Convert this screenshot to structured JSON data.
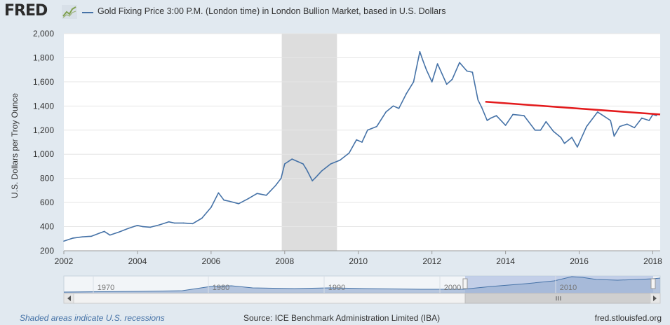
{
  "header": {
    "logo": "FRED",
    "logo_mark": "fred-chart-icon",
    "series_title": "Gold Fixing Price 3:00 P.M. (London time) in London Bullion Market, based in U.S. Dollars"
  },
  "footer": {
    "recession_note": "Shaded areas indicate U.S. recessions",
    "source": "Source: ICE Benchmark Administration Limited (IBA)",
    "site": "fred.stlouisfed.org"
  },
  "navigator": {
    "tick_labels": [
      "1970",
      "1980",
      "1990",
      "2000",
      "2010"
    ],
    "scroll_left_icon": "left-arrow-icon",
    "scroll_right_icon": "right-arrow-icon",
    "grip_icon": "grip-icon"
  },
  "colors": {
    "series": "#4572a7",
    "trendline": "#e31a1c",
    "recession": "#dddddd",
    "background": "#e1e9f0",
    "plot_bg": "#ffffff"
  },
  "chart_data": {
    "type": "line",
    "title": "Gold Fixing Price 3:00 P.M. (London time) in London Bullion Market, based in U.S. Dollars",
    "xlabel": "",
    "ylabel": "U.S. Dollars per Troy Ounce",
    "xlim": [
      2002.0,
      2018.2
    ],
    "ylim": [
      200,
      2000
    ],
    "yticks": [
      200,
      400,
      600,
      800,
      1000,
      1200,
      1400,
      1600,
      1800,
      2000
    ],
    "ytick_labels": [
      "200",
      "400",
      "600",
      "800",
      "1,000",
      "1,200",
      "1,400",
      "1,600",
      "1,800",
      "2,000"
    ],
    "xticks": [
      2002,
      2004,
      2006,
      2008,
      2010,
      2012,
      2014,
      2016,
      2018
    ],
    "xtick_labels": [
      "2002",
      "2004",
      "2006",
      "2008",
      "2010",
      "2012",
      "2014",
      "2016",
      "2018"
    ],
    "grid": true,
    "recession_shading": [
      [
        2007.92,
        2009.42
      ]
    ],
    "series": [
      {
        "x": [
          2002.0,
          2002.25,
          2002.5,
          2002.75,
          2003.0,
          2003.1,
          2003.25,
          2003.5,
          2003.75,
          2004.0,
          2004.15,
          2004.35,
          2004.6,
          2004.85,
          2005.0,
          2005.25,
          2005.5,
          2005.75,
          2006.0,
          2006.2,
          2006.35,
          2006.5,
          2006.75,
          2007.0,
          2007.25,
          2007.5,
          2007.75,
          2007.9,
          2008.0,
          2008.2,
          2008.5,
          2008.6,
          2008.75,
          2008.85,
          2009.0,
          2009.25,
          2009.5,
          2009.75,
          2009.95,
          2010.1,
          2010.25,
          2010.5,
          2010.75,
          2010.95,
          2011.1,
          2011.3,
          2011.5,
          2011.67,
          2011.75,
          2011.85,
          2012.0,
          2012.15,
          2012.4,
          2012.55,
          2012.75,
          2012.95,
          2013.1,
          2013.25,
          2013.35,
          2013.5,
          2013.6,
          2013.75,
          2014.0,
          2014.2,
          2014.5,
          2014.8,
          2014.95,
          2015.1,
          2015.3,
          2015.5,
          2015.6,
          2015.8,
          2015.95,
          2016.2,
          2016.5,
          2016.65,
          2016.85,
          2016.95,
          2017.1,
          2017.3,
          2017.5,
          2017.7,
          2017.9,
          2018.0,
          2018.1
        ],
        "y": [
          280,
          305,
          315,
          320,
          350,
          360,
          330,
          355,
          385,
          410,
          400,
          395,
          415,
          440,
          430,
          430,
          425,
          470,
          560,
          680,
          620,
          610,
          590,
          630,
          675,
          660,
          740,
          800,
          920,
          960,
          920,
          870,
          780,
          810,
          860,
          920,
          950,
          1010,
          1120,
          1100,
          1200,
          1230,
          1350,
          1400,
          1380,
          1500,
          1600,
          1850,
          1780,
          1700,
          1600,
          1750,
          1580,
          1620,
          1760,
          1690,
          1680,
          1450,
          1390,
          1280,
          1300,
          1320,
          1240,
          1330,
          1320,
          1200,
          1200,
          1270,
          1190,
          1140,
          1090,
          1140,
          1060,
          1230,
          1350,
          1320,
          1280,
          1150,
          1230,
          1250,
          1220,
          1300,
          1280,
          1330,
          1320
        ]
      }
    ],
    "annotations": [
      {
        "type": "trendline",
        "x0": 2013.45,
        "y0": 1435,
        "x1": 2018.2,
        "y1": 1330
      }
    ]
  }
}
